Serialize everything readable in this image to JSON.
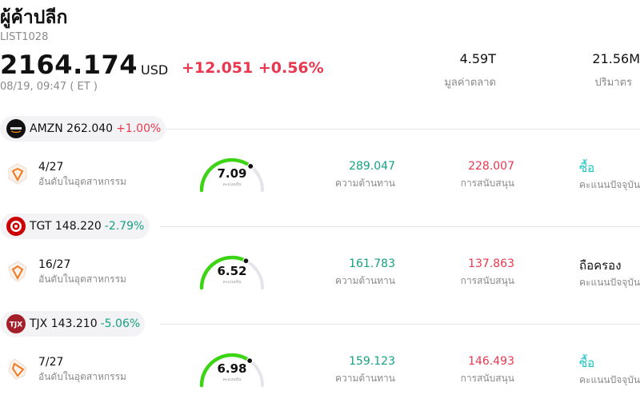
{
  "header": {
    "title": "ผู้ค้าปลีก",
    "code": "LIST1028",
    "price": "2164.174",
    "currency": "USD",
    "change": "+12.051 +0.56%",
    "time": "08/19, 09:47  ( ET )",
    "market_cap_value": "4.59T",
    "market_cap_label": "มูลค่าตลาด",
    "volume_value": "21.56M",
    "volume_label": "ปริมาตร"
  },
  "colors": {
    "up": "#e8384f",
    "down": "#16a085",
    "buy": "#19c2c2",
    "gauge": "#3dd416"
  },
  "rank_label": "อันดับในอุตสาหกรรม",
  "gauge_label": "คะแนนหุ้น",
  "resistance_label": "ความต้านทาน",
  "support_label": "การสนับสนุน",
  "action_label": "คะแนนปัจจุบัน",
  "stocks": [
    {
      "ticker": "AMZN",
      "price": "262.040",
      "change": "+1.00%",
      "direction": "up",
      "logo": "amazon-logo",
      "rank": "4/27",
      "score": "7.09",
      "score_value": 7.09,
      "resistance": "289.047",
      "support": "228.007",
      "action": "ซื้อ",
      "action_type": "buy"
    },
    {
      "ticker": "TGT",
      "price": "148.220",
      "change": "-2.79%",
      "direction": "down",
      "logo": "target-logo",
      "rank": "16/27",
      "score": "6.52",
      "score_value": 6.52,
      "resistance": "161.783",
      "support": "137.863",
      "action": "ถือครอง",
      "action_type": "hold"
    },
    {
      "ticker": "TJX",
      "price": "143.210",
      "change": "-5.06%",
      "direction": "down",
      "logo": "tjx-logo",
      "rank": "7/27",
      "score": "6.98",
      "score_value": 6.98,
      "resistance": "159.123",
      "support": "146.493",
      "action": "ซื้อ",
      "action_type": "buy"
    }
  ]
}
